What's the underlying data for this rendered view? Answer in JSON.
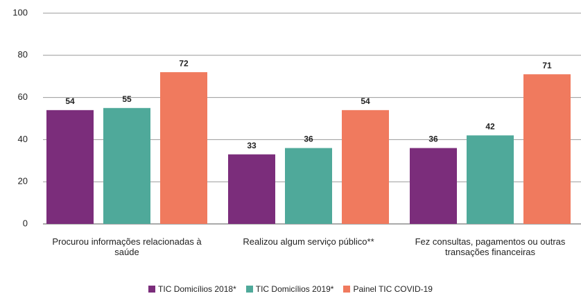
{
  "chart_data": {
    "type": "bar",
    "categories": [
      "Procurou informações relacionadas à saúde",
      "Realizou algum serviço público**",
      "Fez consultas, pagamentos ou outras transações financeiras"
    ],
    "series": [
      {
        "name": "TIC Domicílios 2018*",
        "color": "#7b2d7b",
        "values": [
          54,
          33,
          36
        ]
      },
      {
        "name": "TIC Domicílios 2019*",
        "color": "#4fa99a",
        "values": [
          55,
          36,
          42
        ]
      },
      {
        "name": "Painel TIC COVID-19",
        "color": "#f07a5e",
        "values": [
          72,
          54,
          71
        ]
      }
    ],
    "ylim": [
      0,
      100
    ],
    "yticks": [
      0,
      20,
      40,
      60,
      80,
      100
    ],
    "grid": true,
    "legend": "bottom"
  }
}
